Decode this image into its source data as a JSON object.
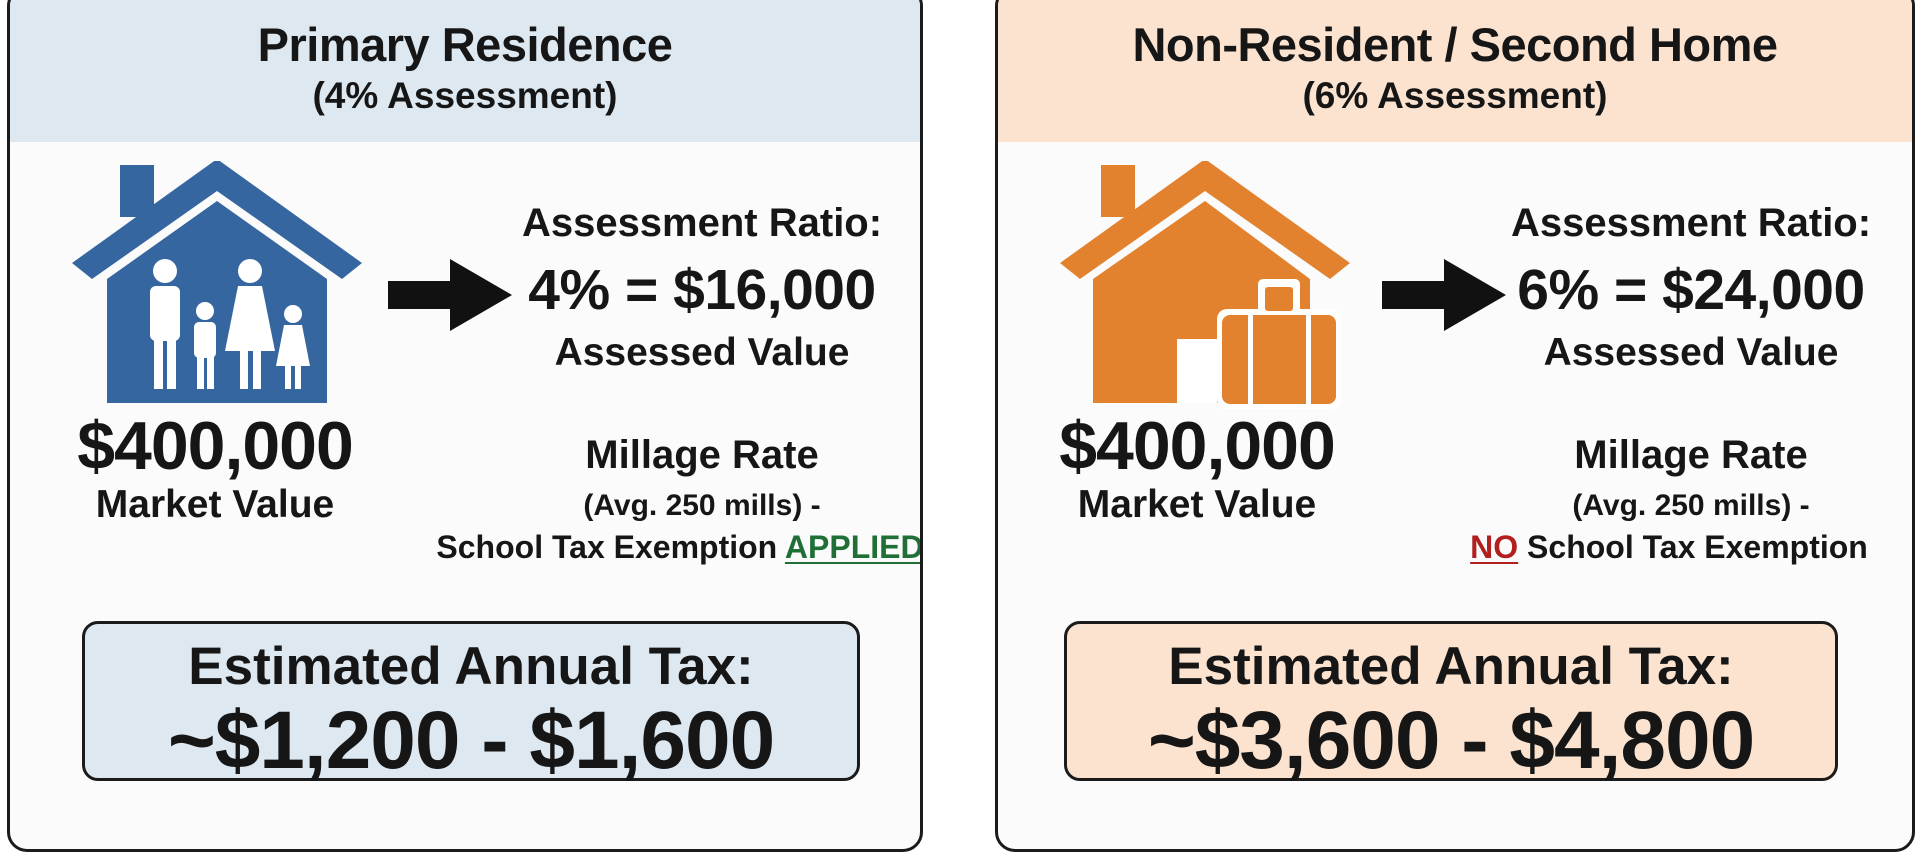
{
  "primary": {
    "title": "Primary Residence",
    "subtitle": "(4% Assessment)",
    "icon": "family-house-icon",
    "market_value": "$400,000",
    "market_label": "Market Value",
    "ratio_heading": "Assessment Ratio:",
    "ratio_value": "4% = $16,000",
    "ratio_label": "Assessed Value",
    "millage_heading": "Millage Rate",
    "millage_sub": "(Avg. 250 mills) -",
    "exemption_text": "School Tax Exemption",
    "exemption_status": "APPLIED",
    "tax_label": "Estimated Annual Tax:",
    "tax_range": "~$1,200 - $1,600"
  },
  "nonresident": {
    "title": "Non-Resident / Second Home",
    "subtitle": "(6% Assessment)",
    "icon": "suitcase-house-icon",
    "market_value": "$400,000",
    "market_label": "Market Value",
    "ratio_heading": "Assessment Ratio:",
    "ratio_value": "6% = $24,000",
    "ratio_label": "Assessed Value",
    "millage_heading": "Millage Rate",
    "millage_sub": "(Avg. 250 mills) -",
    "exemption_prefix": "NO",
    "exemption_text": "School Tax Exemption",
    "tax_label": "Estimated Annual Tax:",
    "tax_range": "~$3,600 - $4,800"
  },
  "colors": {
    "blue": "#3566a0",
    "orange": "#e2822e",
    "applied_green": "#1f6f37",
    "no_red": "#b21f1f",
    "blue_header": "#dde8f1",
    "orange_header": "#fbe3d0"
  }
}
